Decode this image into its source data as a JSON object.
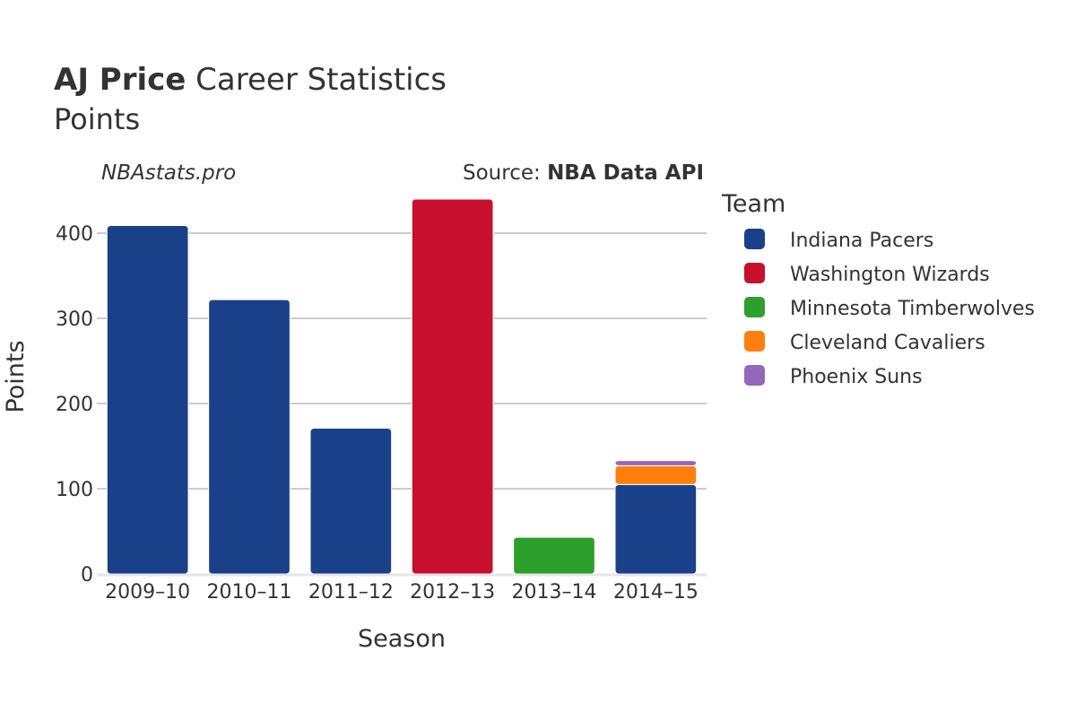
{
  "chart_data": {
    "type": "bar",
    "stacked": true,
    "title": {
      "player": "AJ Price",
      "suffix": "Career Statistics",
      "subtitle": "Points"
    },
    "watermark": "NBAstats.pro",
    "source": {
      "prefix": "Source: ",
      "name": "NBA Data API"
    },
    "xlabel": "Season",
    "ylabel": "Points",
    "ylim": [
      0,
      440
    ],
    "yticks": [
      0,
      100,
      200,
      300,
      400
    ],
    "grid": true,
    "legend_title": "Team",
    "legend_position": "right",
    "categories": [
      "2009–10",
      "2010–11",
      "2011–12",
      "2012–13",
      "2013–14",
      "2014–15"
    ],
    "series": [
      {
        "name": "Indiana Pacers",
        "color": "#1b408a",
        "values": [
          409,
          322,
          171,
          0,
          0,
          105
        ]
      },
      {
        "name": "Washington Wizards",
        "color": "#c8102e",
        "values": [
          0,
          0,
          0,
          440,
          0,
          0
        ]
      },
      {
        "name": "Minnesota Timberwolves",
        "color": "#2ca02c",
        "values": [
          0,
          0,
          0,
          0,
          43,
          0
        ]
      },
      {
        "name": "Cleveland Cavaliers",
        "color": "#ff7f0e",
        "values": [
          0,
          0,
          0,
          0,
          0,
          22
        ]
      },
      {
        "name": "Phoenix Suns",
        "color": "#9467bd",
        "values": [
          0,
          0,
          0,
          0,
          0,
          6
        ]
      }
    ]
  }
}
